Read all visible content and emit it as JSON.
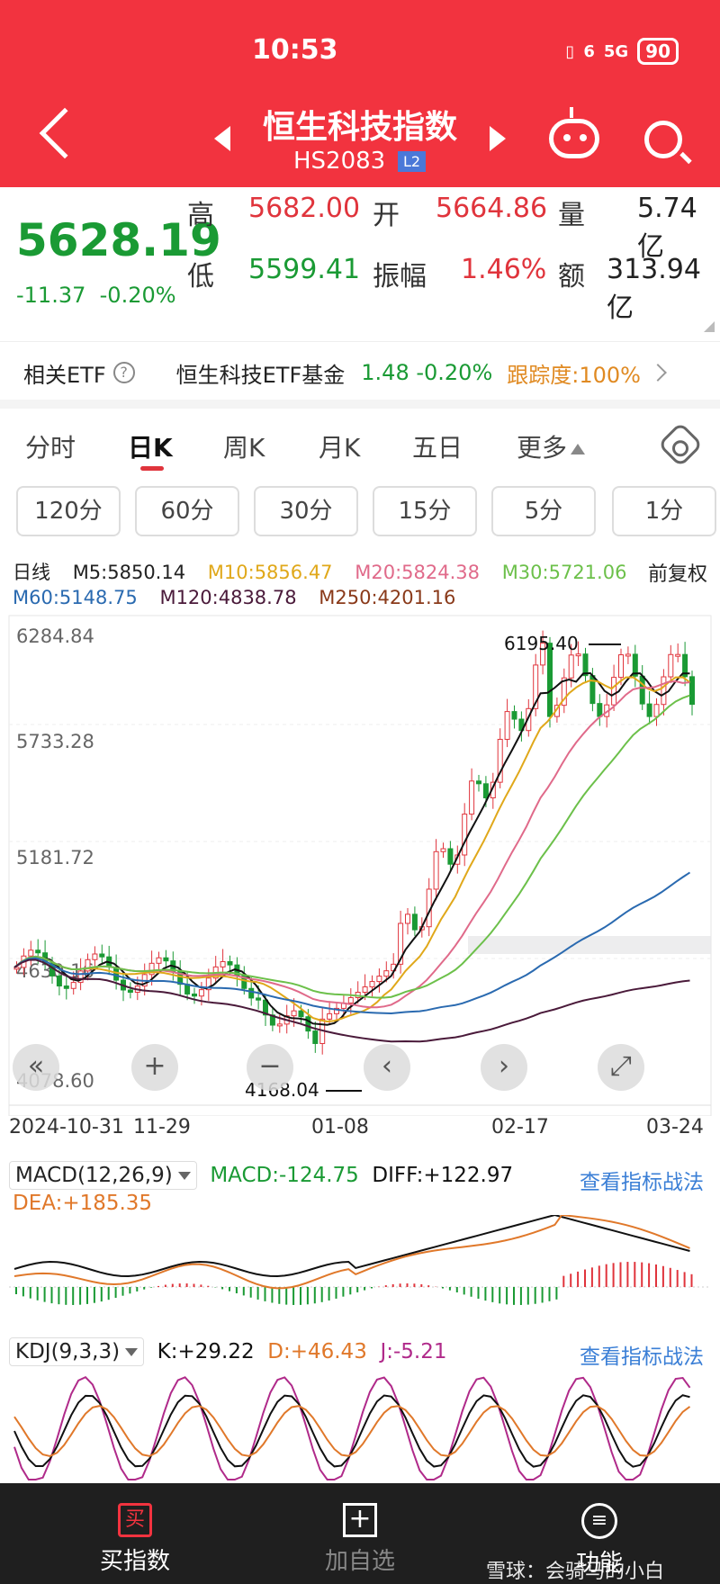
{
  "status": {
    "time": "10:53",
    "battery": "90",
    "signal": "5G",
    "wifi": "6"
  },
  "header": {
    "title": "恒生科技指数",
    "code": "HS2083",
    "badge": "L2"
  },
  "quote": {
    "price": "5628.19",
    "change": "-11.37",
    "change_pct": "-0.20%",
    "high_label": "高",
    "high": "5682.00",
    "open_label": "开",
    "open": "5664.86",
    "volume_label": "量",
    "volume": "5.74亿",
    "low_label": "低",
    "low": "5599.41",
    "amp_label": "振幅",
    "amp": "1.46%",
    "amount_label": "额",
    "amount": "313.94亿"
  },
  "etf": {
    "label": "相关ETF",
    "help": "?",
    "fund": "恒生科技ETF基金",
    "nums": "1.48 -0.20%",
    "track": "跟踪度:100%"
  },
  "tabs": [
    {
      "label": "分时"
    },
    {
      "label": "日K"
    },
    {
      "label": "周K"
    },
    {
      "label": "月K"
    },
    {
      "label": "五日"
    },
    {
      "label": "更多"
    }
  ],
  "periods": [
    "120分",
    "60分",
    "30分",
    "15分",
    "5分",
    "1分"
  ],
  "ma": {
    "type": "日线",
    "m5": "M5:5850.14",
    "m10": "M10:5856.47",
    "m20": "M20:5824.38",
    "m30": "M30:5721.06",
    "fq": "前复权",
    "m60": "M60:5148.75",
    "m120": "M120:4838.78",
    "m250": "M250:4201.16"
  },
  "colors": {
    "up": "#e0343c",
    "down": "#1a9a34",
    "m5": "#111111",
    "m10": "#e0a81a",
    "m20": "#e06a8a",
    "m30": "#6cc04a",
    "m60": "#2a6ab0",
    "m120": "#4a1a3a",
    "m250": "#8a3a1a"
  },
  "chart_data": {
    "type": "candlestick",
    "y_labels": [
      "6284.84",
      "5733.28",
      "5181.72",
      "4630.16",
      "4078.60"
    ],
    "x_labels": [
      "2024-10-31",
      "11-29",
      "01-08",
      "02-17",
      "03-24"
    ],
    "high_mark": "6195.40",
    "low_mark": "4168.04"
  },
  "macd": {
    "name": "MACD(12,26,9)",
    "macd": "MACD:-124.75",
    "diff": "DIFF:+122.97",
    "dea": "DEA:+185.35",
    "link": "查看指标战法"
  },
  "kdj": {
    "name": "KDJ(9,3,3)",
    "k": "K:+29.22",
    "d": "D:+46.43",
    "j": "J:-5.21",
    "link": "查看指标战法"
  },
  "bottom": {
    "buy": "买指数",
    "buy_icon": "买",
    "add": "加自选",
    "func": "功能",
    "watermark": "雪球：会骑马的小白"
  }
}
